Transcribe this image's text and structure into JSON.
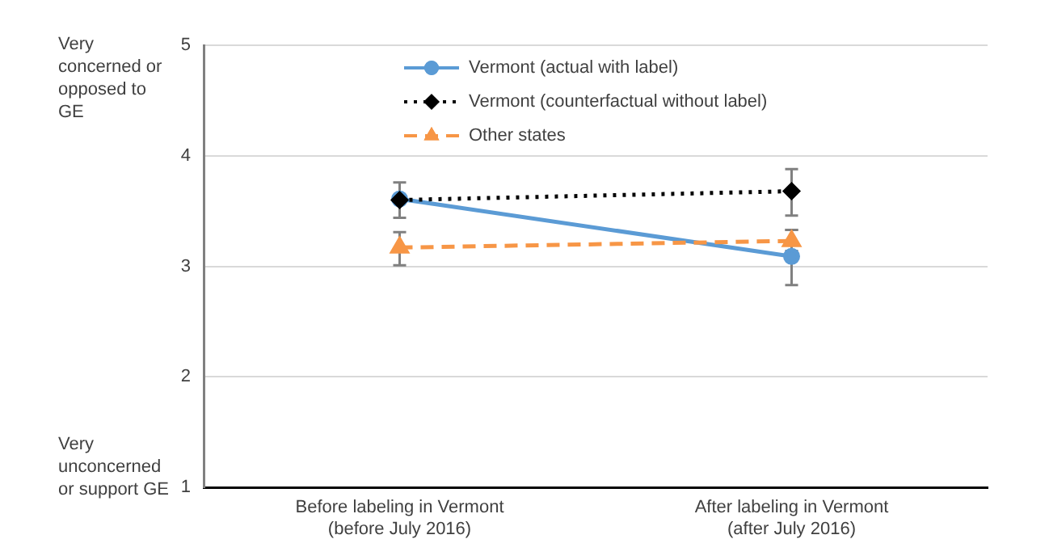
{
  "chart_data": {
    "type": "line",
    "categories": [
      "Before labeling in Vermont\n(before July 2016)",
      "After labeling in Vermont\n(after July 2016)"
    ],
    "series": [
      {
        "name": "Vermont (actual with label)",
        "color": "#5b9bd5",
        "values": [
          3.61,
          3.09
        ],
        "errors": [
          [
            3.44,
            3.76
          ],
          [
            2.83,
            3.33
          ]
        ],
        "marker": "circle",
        "line_style": "solid"
      },
      {
        "name": "Vermont (counterfactual without label)",
        "color": "#000000",
        "values": [
          3.6,
          3.68
        ],
        "errors": [
          null,
          [
            3.46,
            3.88
          ]
        ],
        "marker": "diamond",
        "line_style": "dotted"
      },
      {
        "name": "Other states",
        "color": "#f79646",
        "values": [
          3.17,
          3.23
        ],
        "errors": [
          [
            3.01,
            3.31
          ],
          [
            3.14,
            3.33
          ]
        ],
        "marker": "triangle",
        "line_style": "dashed"
      }
    ],
    "ylim": [
      1,
      5
    ],
    "yticks": [
      1,
      2,
      3,
      4,
      5
    ],
    "grid": "y",
    "legend": "top left",
    "annotations": [
      "Very concerned or opposed to GE",
      "Very unconcerned or support GE"
    ]
  }
}
